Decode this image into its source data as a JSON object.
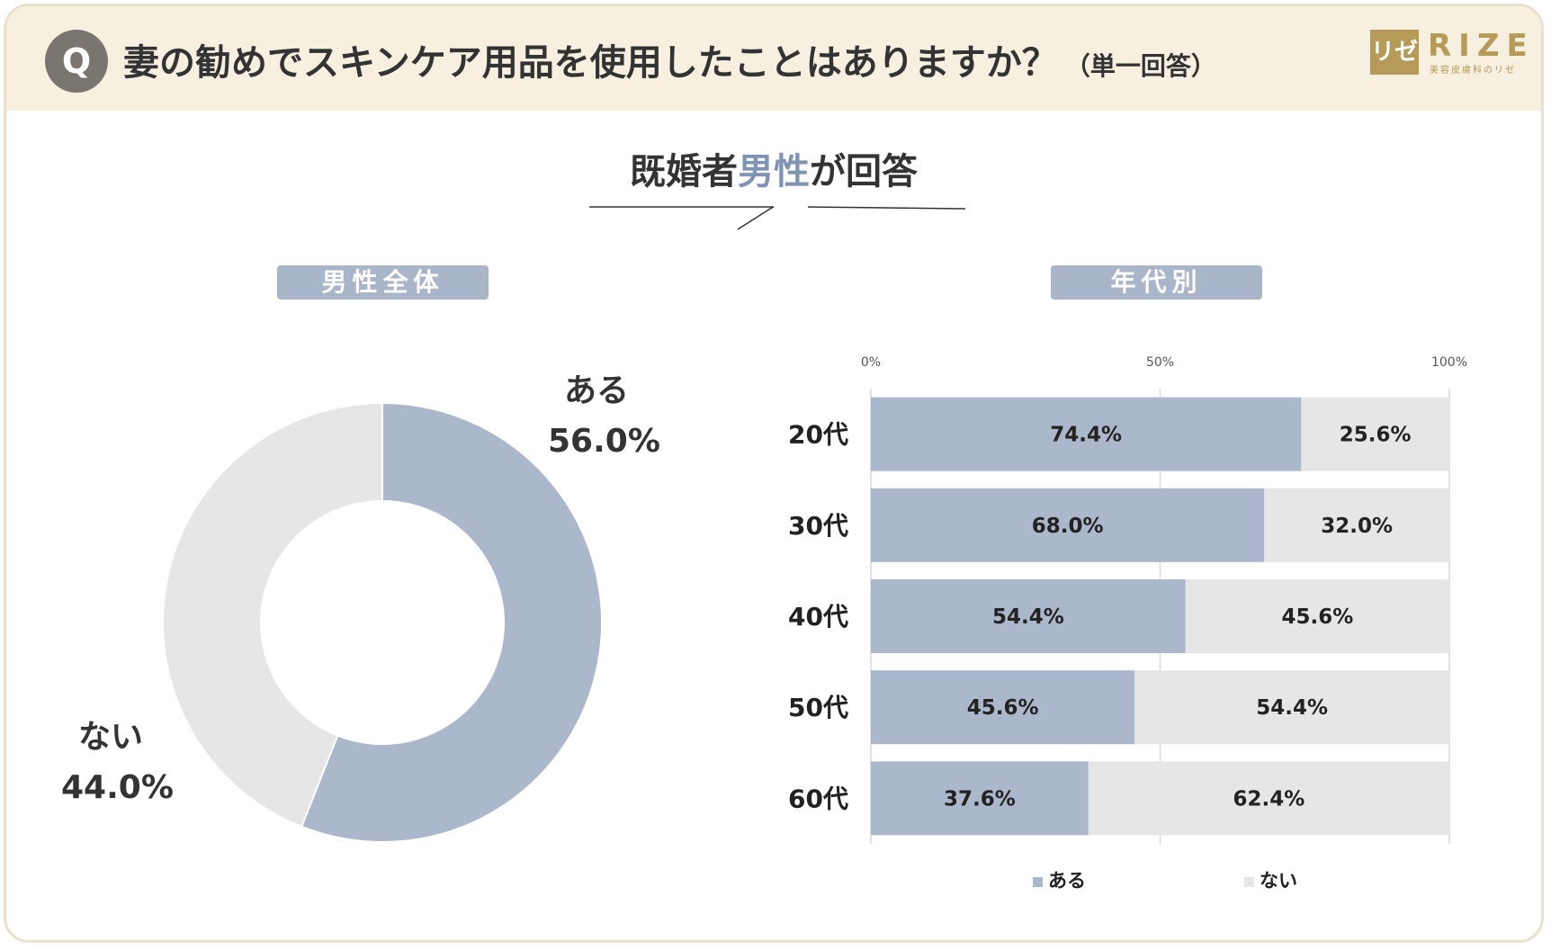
{
  "header": {
    "badge": "Q",
    "question": "妻の勧めでスキンケア用品を使用したことはありますか？",
    "question_note": "（単一回答）",
    "logo_mark": "リゼ",
    "logo_text": "RIZE",
    "logo_sub": "美容皮膚科のリゼ"
  },
  "subtitle": {
    "prefix": "既婚者",
    "accent": "男性",
    "suffix": "が回答"
  },
  "colors": {
    "aru": "#abb7ca",
    "nai": "#e6e6e6",
    "accent_text": "#7f93b3",
    "pill": "#a9b5c8",
    "header_bg": "#f7efdf",
    "logo": "#b59a58"
  },
  "chart_data": [
    {
      "type": "pie",
      "title": "男性全体",
      "donut": true,
      "labels": [
        "ある",
        "ない"
      ],
      "values": [
        56.0,
        44.0
      ],
      "value_labels": [
        "56.0%",
        "44.0%"
      ]
    },
    {
      "type": "bar",
      "title": "年代別",
      "orientation": "horizontal",
      "stacked": true,
      "percent_stacked": true,
      "categories": [
        "20代",
        "30代",
        "40代",
        "50代",
        "60代"
      ],
      "series": [
        {
          "name": "ある",
          "values": [
            74.4,
            68.0,
            54.4,
            45.6,
            37.6
          ],
          "labels": [
            "74.4%",
            "68.0%",
            "54.4%",
            "45.6%",
            "37.6%"
          ]
        },
        {
          "name": "ない",
          "values": [
            25.6,
            32.0,
            45.6,
            54.4,
            62.4
          ],
          "labels": [
            "25.6%",
            "32.0%",
            "45.6%",
            "54.4%",
            "62.4%"
          ]
        }
      ],
      "xlim": [
        0,
        100
      ],
      "xticks": [
        "0%",
        "50%",
        "100%"
      ],
      "grid": true,
      "legend_position": "bottom"
    }
  ]
}
